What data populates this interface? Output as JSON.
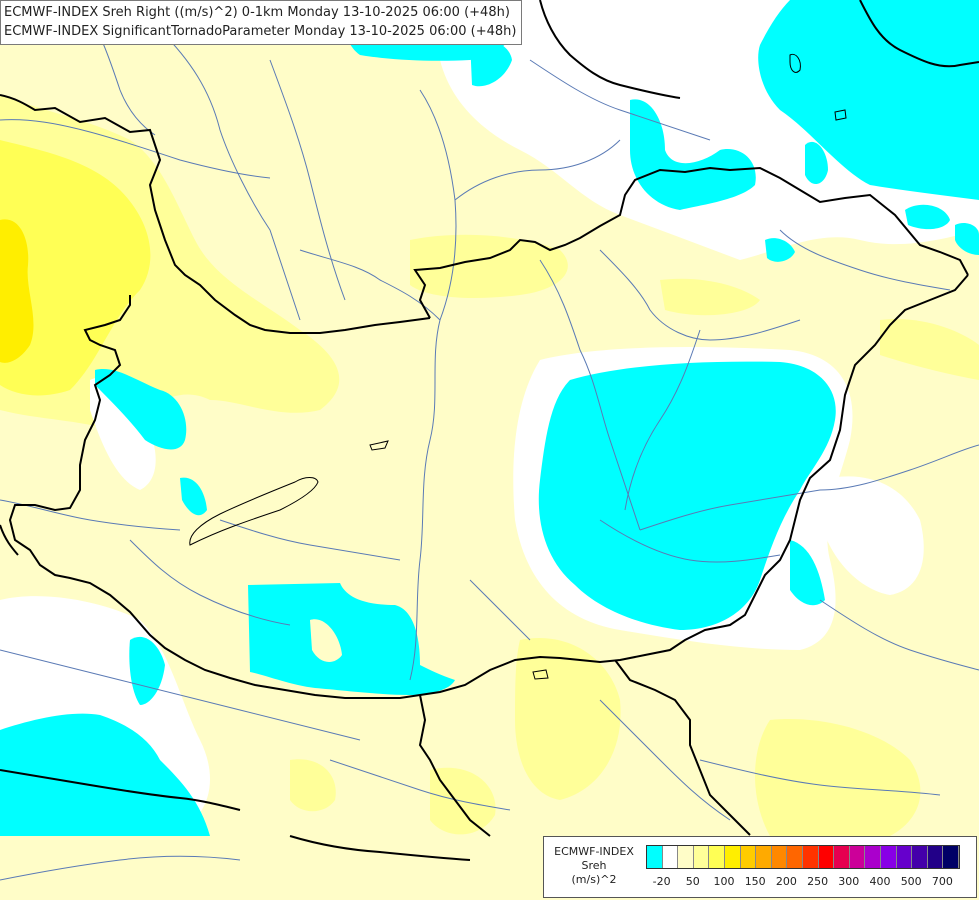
{
  "title": {
    "line1": "ECMWF-INDEX Sreh Right ((m/s)^2) 0-1km Monday 13-10-2025 06:00 (+48h)",
    "line2": "ECMWF-INDEX SignificantTornadoParameter Monday 13-10-2025 06:00 (+48h)"
  },
  "legend": {
    "source": "ECMWF-INDEX",
    "parameter": "Sreh",
    "unit": "(m/s)^2",
    "tick_labels": [
      "-20",
      "50",
      "100",
      "150",
      "200",
      "250",
      "300",
      "400",
      "500",
      "700"
    ],
    "colors": [
      "#00ffff",
      "#ffffff",
      "#fffdc8",
      "#ffff99",
      "#ffff55",
      "#ffee00",
      "#ffcc00",
      "#ffaa00",
      "#ff8800",
      "#ff6600",
      "#ff3300",
      "#ff0000",
      "#e60050",
      "#cc0099",
      "#aa00cc",
      "#8800e6",
      "#6600cc",
      "#4400aa",
      "#220088",
      "#000066"
    ]
  },
  "map_colors": {
    "background": "#fffdc8",
    "cyan": "#00ffff",
    "white": "#ffffff",
    "light_yellow": "#ffff99",
    "yellow": "#ffff55",
    "strong_yellow": "#ffee00",
    "border": "#000000",
    "river": "#5a7ab5"
  }
}
